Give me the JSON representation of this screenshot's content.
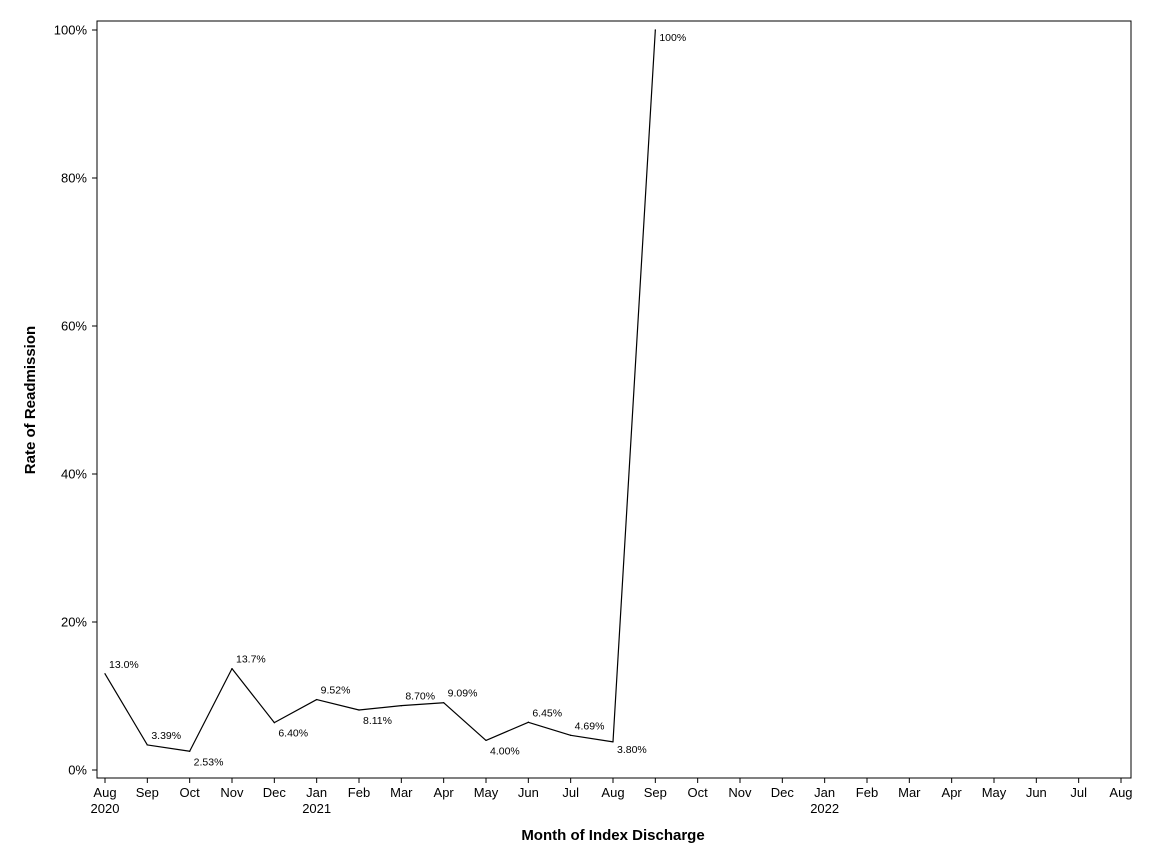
{
  "chart_data": {
    "type": "line",
    "xlabel": "Month of Index Discharge",
    "ylabel": "Rate of Readmission",
    "ylim": [
      0,
      100
    ],
    "y_unit": "%",
    "y_ticks": [
      "0%",
      "20%",
      "40%",
      "60%",
      "80%",
      "100%"
    ],
    "y_tick_values": [
      0,
      20,
      40,
      60,
      80,
      100
    ],
    "x_ticks": [
      {
        "month": "Aug",
        "year": "2020"
      },
      {
        "month": "Sep",
        "year": ""
      },
      {
        "month": "Oct",
        "year": ""
      },
      {
        "month": "Nov",
        "year": ""
      },
      {
        "month": "Dec",
        "year": ""
      },
      {
        "month": "Jan",
        "year": "2021"
      },
      {
        "month": "Feb",
        "year": ""
      },
      {
        "month": "Mar",
        "year": ""
      },
      {
        "month": "Apr",
        "year": ""
      },
      {
        "month": "May",
        "year": ""
      },
      {
        "month": "Jun",
        "year": ""
      },
      {
        "month": "Jul",
        "year": ""
      },
      {
        "month": "Aug",
        "year": ""
      },
      {
        "month": "Sep",
        "year": ""
      },
      {
        "month": "Oct",
        "year": ""
      },
      {
        "month": "Nov",
        "year": ""
      },
      {
        "month": "Dec",
        "year": ""
      },
      {
        "month": "Jan",
        "year": "2022"
      },
      {
        "month": "Feb",
        "year": ""
      },
      {
        "month": "Mar",
        "year": ""
      },
      {
        "month": "Apr",
        "year": ""
      },
      {
        "month": "May",
        "year": ""
      },
      {
        "month": "Jun",
        "year": ""
      },
      {
        "month": "Jul",
        "year": ""
      },
      {
        "month": "Aug",
        "year": ""
      }
    ],
    "x_tick_dates": [
      "2020-08",
      "2020-09",
      "2020-10",
      "2020-11",
      "2020-12",
      "2021-01",
      "2021-02",
      "2021-03",
      "2021-04",
      "2021-05",
      "2021-06",
      "2021-07",
      "2021-08",
      "2021-09",
      "2021-10",
      "2021-11",
      "2021-12",
      "2022-01",
      "2022-02",
      "2022-03",
      "2022-04",
      "2022-05",
      "2022-06",
      "2022-07",
      "2022-08"
    ],
    "series": [
      {
        "points": [
          {
            "x": "2020-08",
            "y": 13.0,
            "label": "13.0%",
            "label_pos": "above"
          },
          {
            "x": "2020-09",
            "y": 3.39,
            "label": "3.39%",
            "label_pos": "above"
          },
          {
            "x": "2020-10",
            "y": 2.53,
            "label": "2.53%",
            "label_pos": "below"
          },
          {
            "x": "2020-11",
            "y": 13.7,
            "label": "13.7%",
            "label_pos": "above"
          },
          {
            "x": "2020-12",
            "y": 6.4,
            "label": "6.40%",
            "label_pos": "below"
          },
          {
            "x": "2021-01",
            "y": 9.52,
            "label": "9.52%",
            "label_pos": "above"
          },
          {
            "x": "2021-02",
            "y": 8.11,
            "label": "8.11%",
            "label_pos": "below"
          },
          {
            "x": "2021-03",
            "y": 8.7,
            "label": "8.70%",
            "label_pos": "above"
          },
          {
            "x": "2021-04",
            "y": 9.09,
            "label": "9.09%",
            "label_pos": "above"
          },
          {
            "x": "2021-05",
            "y": 4.0,
            "label": "4.00%",
            "label_pos": "below"
          },
          {
            "x": "2021-06",
            "y": 6.45,
            "label": "6.45%",
            "label_pos": "above"
          },
          {
            "x": "2021-07",
            "y": 4.69,
            "label": "4.69%",
            "label_pos": "above"
          },
          {
            "x": "2021-08",
            "y": 3.8,
            "label": "3.80%",
            "label_pos": "right"
          },
          {
            "x": "2021-09",
            "y": 100,
            "label": "100%",
            "label_pos": "right"
          }
        ],
        "color": "#000000"
      }
    ],
    "grid": false,
    "legend": "none"
  }
}
